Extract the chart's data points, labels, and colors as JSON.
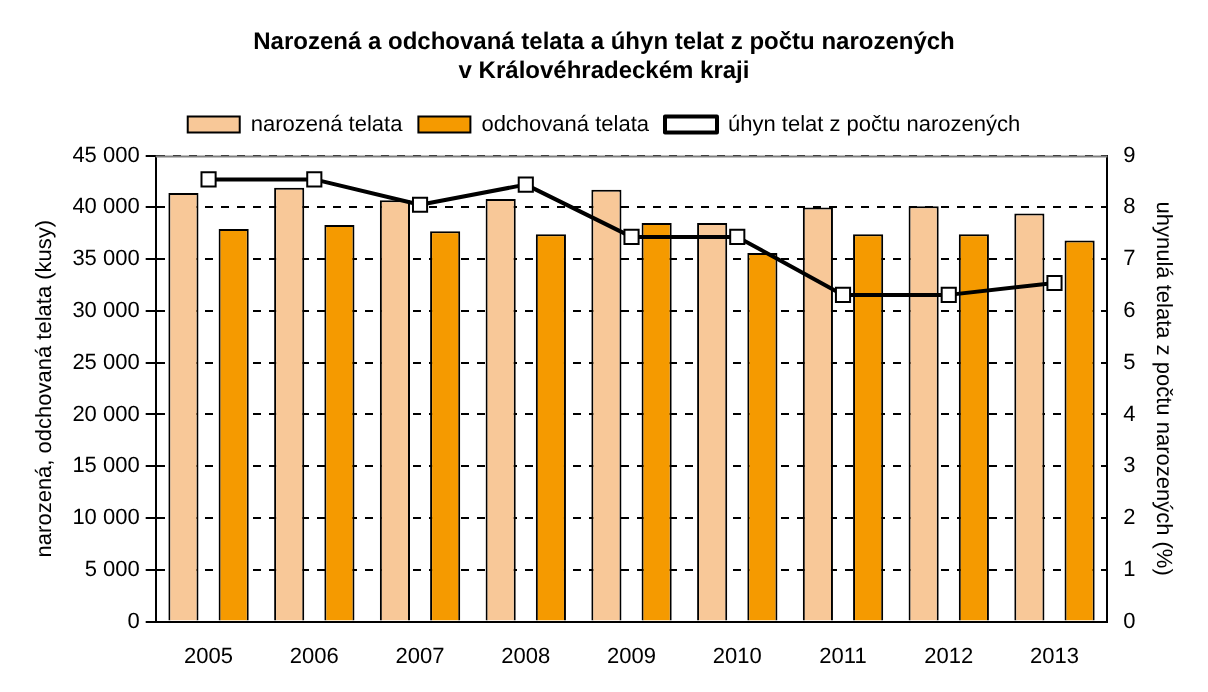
{
  "chart_data": {
    "type": "bar",
    "title": "Narozená a odchovaná telata a úhyn telat z počtu narozených\nv Královéhradeckém kraji",
    "categories": [
      "2005",
      "2006",
      "2007",
      "2008",
      "2009",
      "2010",
      "2011",
      "2012",
      "2013"
    ],
    "series": [
      {
        "name": "narozená telata",
        "color": "#f8c898",
        "values": [
          41400,
          41900,
          40700,
          40800,
          41700,
          38500,
          40000,
          40100,
          39400
        ]
      },
      {
        "name": "odchovaná telata",
        "color": "#f59a00",
        "values": [
          37900,
          38300,
          37700,
          37400,
          38500,
          35600,
          37400,
          37400,
          36800
        ]
      },
      {
        "name": "úhyn telat z počtu narozených",
        "type": "line",
        "axis": "y2",
        "color": "#000000",
        "marker": "square",
        "values": [
          8.54,
          8.54,
          8.05,
          8.44,
          7.43,
          7.43,
          6.31,
          6.31,
          6.54
        ]
      }
    ],
    "ylabel": "narozená, odchovaná telata (kusy)",
    "y2label": "uhynulá telata z počtu narozených (%)",
    "ylim": [
      0,
      45000
    ],
    "yticks": [
      0,
      {
        "value": 5000,
        "label": "5 000"
      },
      {
        "value": 10000,
        "label": "10 000"
      },
      {
        "value": 15000,
        "label": "15 000"
      },
      {
        "value": 20000,
        "label": "20 000"
      },
      {
        "value": 25000,
        "label": "25 000"
      },
      {
        "value": 30000,
        "label": "30 000"
      },
      {
        "value": 35000,
        "label": "35 000"
      },
      {
        "value": 40000,
        "label": "40 000"
      },
      {
        "value": 45000,
        "label": "45 000"
      }
    ],
    "y2lim": [
      0,
      9
    ],
    "y2ticks": [
      0,
      1,
      2,
      3,
      4,
      5,
      6,
      7,
      8,
      9
    ],
    "grid": "y",
    "legend": "top"
  }
}
